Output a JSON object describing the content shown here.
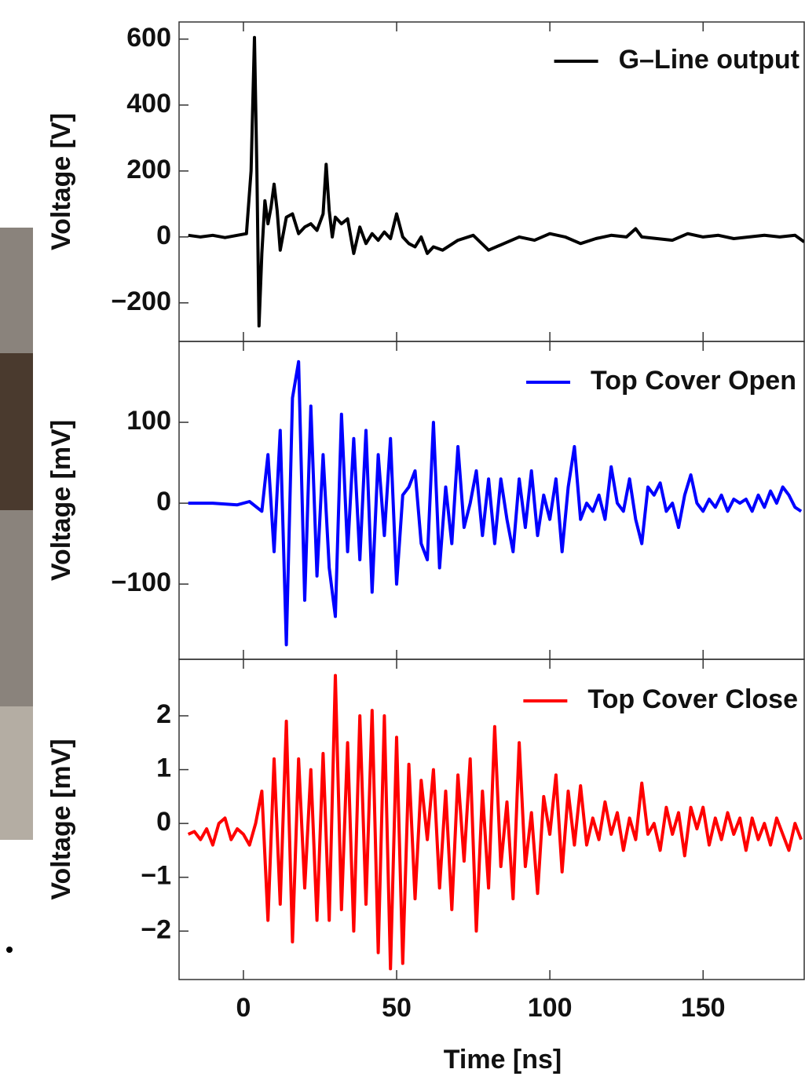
{
  "chart_data": [
    {
      "type": "line",
      "ylabel": "Voltage [V]",
      "xlim": [
        -21,
        183
      ],
      "ylim": [
        -317,
        652
      ],
      "yticks": [
        {
          "value": -200,
          "label": "−200"
        },
        0,
        200,
        400,
        600
      ],
      "x": [
        -18,
        -14,
        -10,
        -6,
        -2,
        1,
        2.5,
        3.6,
        4.4,
        5.1,
        6,
        7,
        8,
        9,
        10,
        11,
        12,
        14,
        16,
        18,
        20,
        22,
        24,
        26,
        27,
        28,
        29,
        30,
        32,
        34,
        36,
        38,
        40,
        42,
        44,
        46,
        48,
        50,
        52,
        54,
        56,
        58,
        60,
        62,
        65,
        70,
        75,
        80,
        85,
        90,
        95,
        100,
        105,
        110,
        115,
        120,
        125,
        128,
        130,
        135,
        140,
        145,
        150,
        155,
        160,
        165,
        170,
        175,
        180,
        183
      ],
      "series": [
        {
          "name": "G–Line output",
          "color": "#000000",
          "values": [
            5,
            0,
            5,
            -2,
            5,
            10,
            200,
            605,
            200,
            -270,
            -50,
            110,
            40,
            90,
            160,
            80,
            -40,
            60,
            70,
            10,
            30,
            40,
            20,
            70,
            220,
            80,
            0,
            60,
            40,
            55,
            -50,
            30,
            -20,
            10,
            -10,
            15,
            -5,
            70,
            0,
            -20,
            -30,
            0,
            -50,
            -30,
            -40,
            -10,
            5,
            -40,
            -20,
            0,
            -10,
            10,
            0,
            -20,
            -5,
            5,
            0,
            25,
            0,
            -5,
            -10,
            10,
            0,
            5,
            -5,
            0,
            5,
            0,
            5,
            -15
          ]
        }
      ]
    },
    {
      "type": "line",
      "ylabel": "Voltage [mV]",
      "xlim": [
        -21,
        183
      ],
      "ylim": [
        -193,
        200
      ],
      "yticks": [
        {
          "value": -100,
          "label": "−100"
        },
        0,
        100
      ],
      "x": [
        -18,
        -10,
        -2,
        2,
        6,
        8,
        10,
        12,
        14,
        16,
        18,
        20,
        22,
        24,
        26,
        28,
        30,
        32,
        34,
        36,
        38,
        40,
        42,
        44,
        46,
        48,
        50,
        52,
        54,
        56,
        58,
        60,
        62,
        64,
        66,
        68,
        70,
        72,
        74,
        76,
        78,
        80,
        82,
        84,
        86,
        88,
        90,
        92,
        94,
        96,
        98,
        100,
        102,
        104,
        106,
        108,
        110,
        112,
        114,
        116,
        118,
        120,
        122,
        124,
        126,
        128,
        130,
        132,
        134,
        136,
        138,
        140,
        142,
        144,
        146,
        148,
        150,
        152,
        154,
        156,
        158,
        160,
        162,
        164,
        166,
        168,
        170,
        172,
        174,
        176,
        178,
        180,
        182
      ],
      "series": [
        {
          "name": "Top Cover Open",
          "color": "#0000ff",
          "values": [
            0,
            0,
            -2,
            2,
            -10,
            60,
            -60,
            90,
            -175,
            130,
            175,
            -120,
            120,
            -90,
            60,
            -80,
            -140,
            110,
            -60,
            80,
            -70,
            90,
            -110,
            60,
            -40,
            80,
            -100,
            10,
            20,
            40,
            -50,
            -70,
            100,
            -80,
            20,
            -50,
            70,
            -30,
            0,
            40,
            -40,
            30,
            -50,
            30,
            -20,
            -60,
            30,
            -30,
            40,
            -40,
            10,
            -20,
            30,
            -60,
            20,
            70,
            -20,
            0,
            -10,
            10,
            -20,
            45,
            0,
            -10,
            30,
            -20,
            -50,
            20,
            10,
            25,
            -10,
            0,
            -30,
            10,
            35,
            0,
            -10,
            5,
            -5,
            10,
            -10,
            5,
            0,
            5,
            -10,
            10,
            -5,
            15,
            0,
            20,
            10,
            -5,
            -10
          ]
        }
      ]
    },
    {
      "type": "line",
      "ylabel": "Voltage [mV]",
      "xlabel": "Time [ns]",
      "xlim": [
        -21,
        183
      ],
      "ylim": [
        -2.9,
        3.05
      ],
      "yticks": [
        {
          "value": -2,
          "label": "−2"
        },
        {
          "value": -1,
          "label": "−1"
        },
        0,
        1,
        2
      ],
      "xticks": [
        0,
        50,
        100,
        150
      ],
      "x": [
        -18,
        -16,
        -14,
        -12,
        -10,
        -8,
        -6,
        -4,
        -2,
        0,
        2,
        4,
        6,
        8,
        10,
        12,
        14,
        16,
        18,
        20,
        22,
        24,
        26,
        28,
        30,
        32,
        34,
        36,
        38,
        40,
        42,
        44,
        46,
        48,
        50,
        52,
        54,
        56,
        58,
        60,
        62,
        64,
        66,
        68,
        70,
        72,
        74,
        76,
        78,
        80,
        82,
        84,
        86,
        88,
        90,
        92,
        94,
        96,
        98,
        100,
        102,
        104,
        106,
        108,
        110,
        112,
        114,
        116,
        118,
        120,
        122,
        124,
        126,
        128,
        130,
        132,
        134,
        136,
        138,
        140,
        142,
        144,
        146,
        148,
        150,
        152,
        154,
        156,
        158,
        160,
        162,
        164,
        166,
        168,
        170,
        172,
        174,
        176,
        178,
        180,
        182
      ],
      "series": [
        {
          "name": "Top Cover Close",
          "color": "#ff0000",
          "values": [
            -0.2,
            -0.15,
            -0.3,
            -0.1,
            -0.4,
            0,
            0.1,
            -0.3,
            -0.1,
            -0.2,
            -0.4,
            0,
            0.6,
            -1.8,
            1.2,
            -1.5,
            1.9,
            -2.2,
            1.2,
            -1.2,
            1.0,
            -1.8,
            1.3,
            -1.8,
            2.75,
            -1.6,
            1.5,
            -2.0,
            2.0,
            -1.5,
            2.1,
            -2.4,
            2.0,
            -2.7,
            1.6,
            -2.6,
            1.1,
            -1.4,
            0.8,
            -0.3,
            1.0,
            -1.2,
            0.6,
            -1.6,
            0.9,
            -0.7,
            1.2,
            -2.0,
            0.6,
            -1.2,
            1.8,
            -0.8,
            0.4,
            -1.4,
            1.5,
            -0.8,
            0.2,
            -1.3,
            0.5,
            -0.2,
            0.9,
            -0.9,
            0.6,
            -0.4,
            0.7,
            -0.4,
            0.1,
            -0.3,
            0.4,
            -0.2,
            0.2,
            -0.5,
            0.1,
            -0.3,
            0.75,
            -0.2,
            0.0,
            -0.5,
            0.3,
            -0.2,
            0.2,
            -0.6,
            0.3,
            -0.1,
            0.3,
            -0.4,
            0.1,
            -0.3,
            0.2,
            -0.2,
            0.1,
            -0.5,
            0.1,
            -0.3,
            0.0,
            -0.4,
            0.1,
            -0.2,
            -0.5,
            0.0,
            -0.3
          ]
        }
      ]
    }
  ]
}
